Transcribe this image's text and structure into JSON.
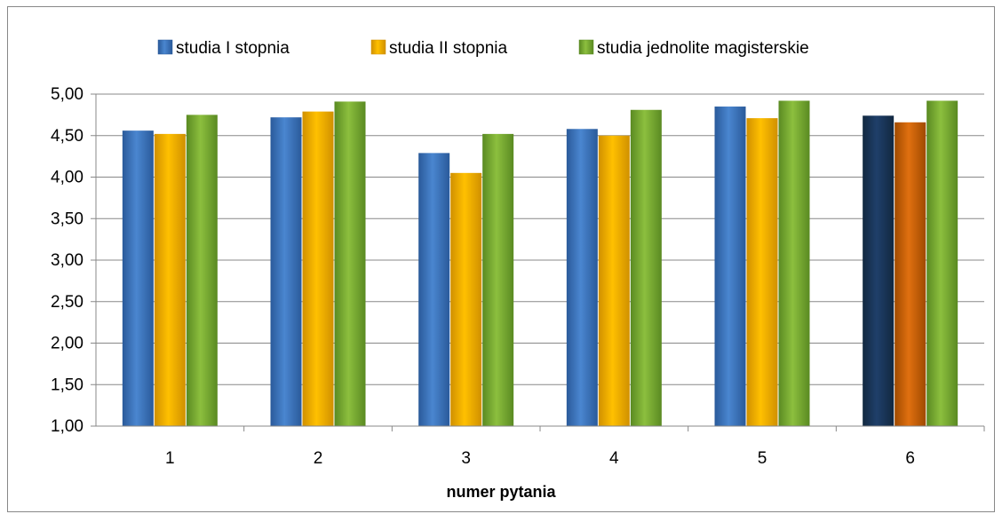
{
  "chart_data": {
    "type": "bar",
    "title": "",
    "xlabel": "numer pytania",
    "ylabel": "",
    "categories": [
      "1",
      "2",
      "3",
      "4",
      "5",
      "6"
    ],
    "series": [
      {
        "name": "studia I stopnia",
        "values": [
          4.56,
          4.72,
          4.29,
          4.58,
          4.85,
          4.74
        ]
      },
      {
        "name": "studia II stopnia",
        "values": [
          4.52,
          4.79,
          4.05,
          4.5,
          4.71,
          4.66
        ]
      },
      {
        "name": "studia jednolite magisterskie",
        "values": [
          4.75,
          4.91,
          4.52,
          4.81,
          4.92,
          4.92
        ]
      }
    ],
    "ylim": [
      1.0,
      5.0
    ],
    "y_ticks": [
      "1,00",
      "1,50",
      "2,00",
      "2,50",
      "3,00",
      "3,50",
      "4,00",
      "4,50",
      "5,00"
    ],
    "y_tick_values": [
      1.0,
      1.5,
      2.0,
      2.5,
      3.0,
      3.5,
      4.0,
      4.5,
      5.0
    ],
    "grid": true,
    "legend_position": "top",
    "colors": {
      "series": [
        "#4a86d0",
        "#ffc000",
        "#8cbf3e"
      ],
      "series_dark": [
        "#2a5a9a",
        "#d09000",
        "#5a8a22"
      ],
      "last_category": [
        "#1f3f6a",
        "#e07010",
        "#8cbf3e"
      ],
      "last_category_dark": [
        "#122840",
        "#a04a00",
        "#5a8a22"
      ],
      "grid": "#888888"
    }
  }
}
